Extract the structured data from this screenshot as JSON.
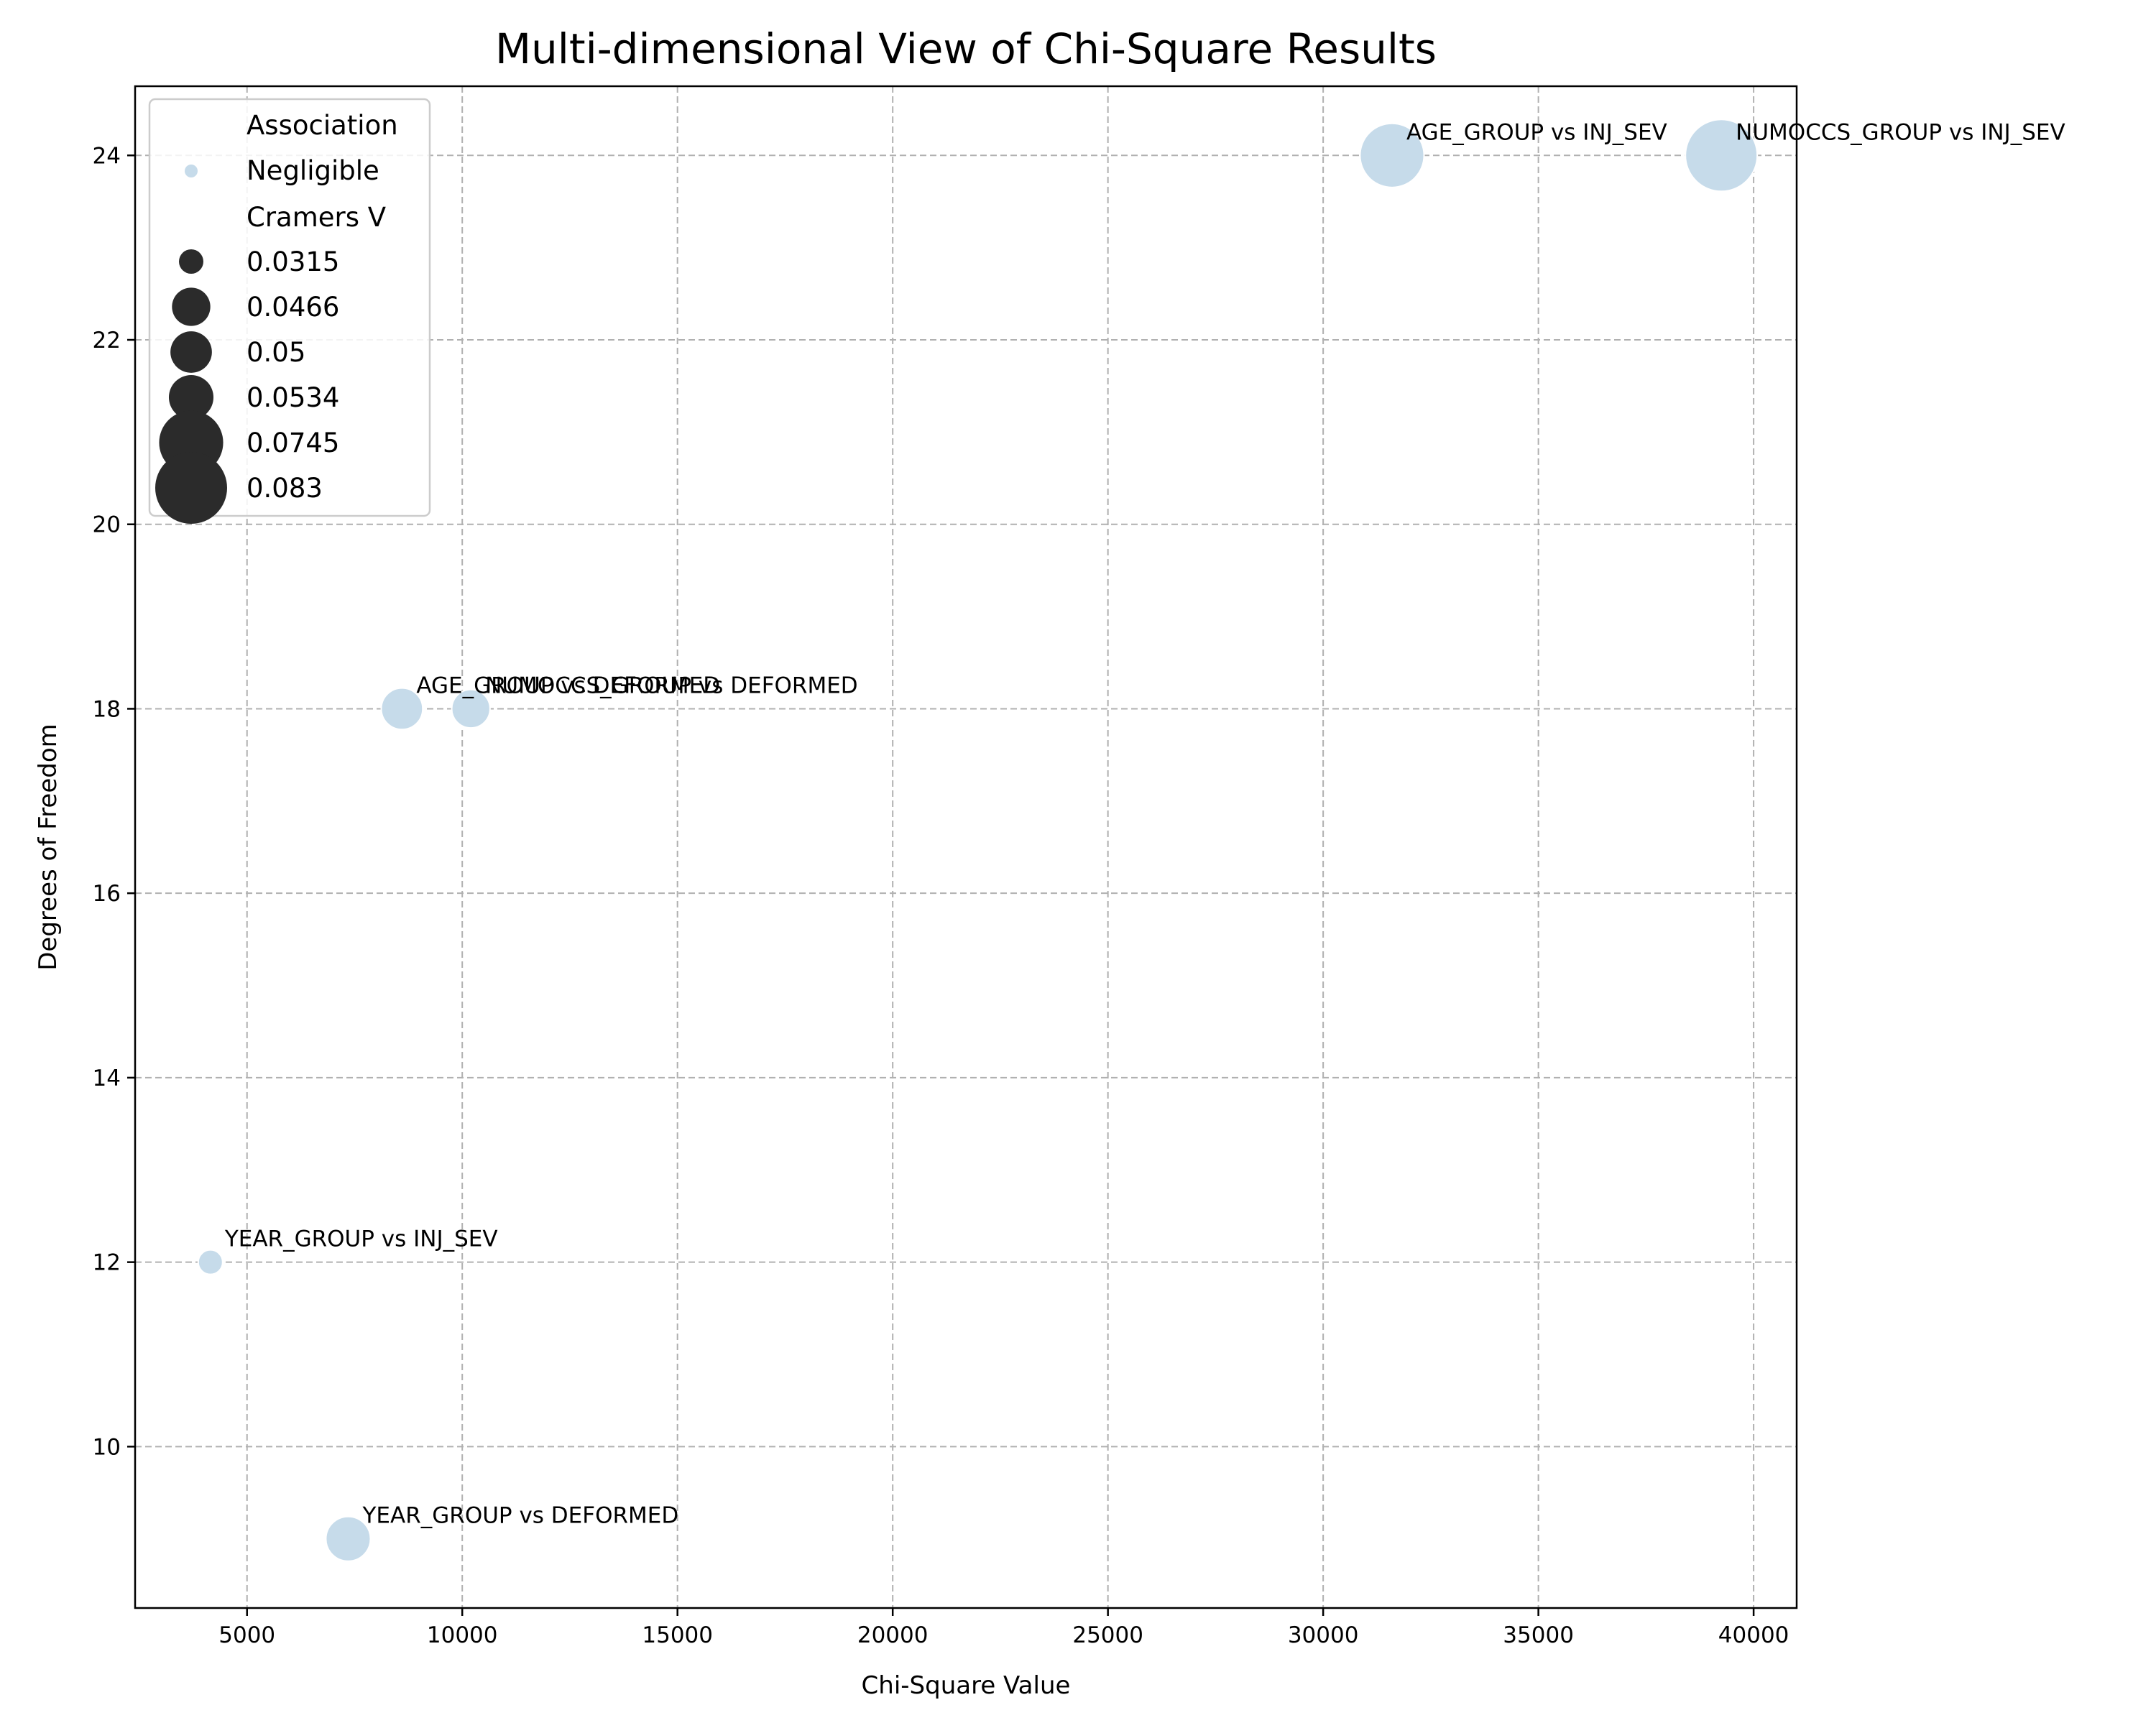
{
  "chart_data": {
    "type": "scatter",
    "title": "Multi-dimensional View of Chi-Square Results",
    "xlabel": "Chi-Square Value",
    "ylabel": "Degrees of Freedom",
    "xlim": [
      2400,
      41000
    ],
    "ylim": [
      8.25,
      24.75
    ],
    "xticks": [
      5000,
      10000,
      15000,
      20000,
      25000,
      30000,
      35000,
      40000
    ],
    "yticks": [
      10,
      12,
      14,
      16,
      18,
      20,
      22,
      24
    ],
    "grid": true,
    "point_color": "#c6dbea",
    "points": [
      {
        "label": "YEAR_GROUP vs INJ_SEV",
        "x": 4150,
        "y": 12,
        "cramers_v": 0.0315
      },
      {
        "label": "YEAR_GROUP vs DEFORMED",
        "x": 7350,
        "y": 9,
        "cramers_v": 0.0534
      },
      {
        "label": "AGE_GROUP vs DEFORMED",
        "x": 8600,
        "y": 18,
        "cramers_v": 0.05
      },
      {
        "label": "NUMOCCS_GROUP vs DEFORMED",
        "x": 10200,
        "y": 18,
        "cramers_v": 0.0466
      },
      {
        "label": "AGE_GROUP vs INJ_SEV",
        "x": 31600,
        "y": 24,
        "cramers_v": 0.0745
      },
      {
        "label": "NUMOCCS_GROUP vs INJ_SEV",
        "x": 39250,
        "y": 24,
        "cramers_v": 0.083
      }
    ],
    "legend": {
      "placement": "upper-left",
      "hue_title": "Association",
      "hue_items": [
        {
          "label": "Negligible",
          "color": "#c6dbea"
        }
      ],
      "size_title": "Cramers V",
      "size_items": [
        {
          "label": "0.0315",
          "value": 0.0315
        },
        {
          "label": "0.0466",
          "value": 0.0466
        },
        {
          "label": "0.05",
          "value": 0.05
        },
        {
          "label": "0.0534",
          "value": 0.0534
        },
        {
          "label": "0.0745",
          "value": 0.0745
        },
        {
          "label": "0.083",
          "value": 0.083
        }
      ],
      "size_marker_color": "#2b2b2b"
    }
  }
}
